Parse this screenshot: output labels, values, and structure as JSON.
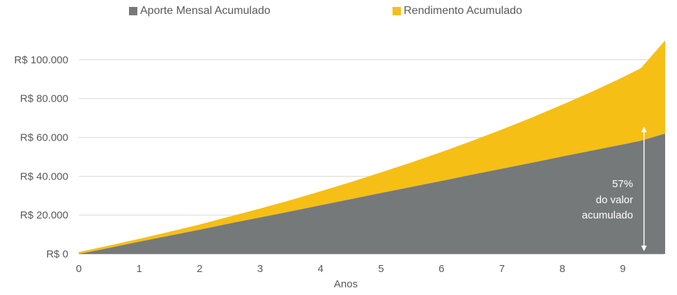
{
  "chart_data": {
    "type": "area",
    "stacked": true,
    "xlabel": "Anos",
    "ylabel": "",
    "xlim": [
      0,
      9.7
    ],
    "ylim": [
      0,
      110000
    ],
    "x_ticks": [
      0,
      1,
      2,
      3,
      4,
      5,
      6,
      7,
      8,
      9
    ],
    "y_ticks": [
      0,
      20000,
      40000,
      60000,
      80000,
      100000
    ],
    "y_tick_labels": [
      "R$ 0",
      "R$ 20.000",
      "R$ 40.000",
      "R$ 60.000",
      "R$ 80.000",
      "R$ 100.000"
    ],
    "grid": "horizontal",
    "legend_position": "top",
    "x": [
      0,
      0.5,
      1,
      1.5,
      2,
      2.5,
      3,
      3.5,
      4,
      4.5,
      5,
      5.5,
      6,
      6.5,
      7,
      7.5,
      8,
      8.5,
      9,
      9.3,
      9.7
    ],
    "series": [
      {
        "name": "Aporte Mensal Acumulado",
        "color": "#76797a",
        "values": [
          0,
          3100,
          6300,
          9400,
          12500,
          15700,
          18800,
          21900,
          25100,
          28200,
          31400,
          34500,
          37600,
          40800,
          43900,
          47000,
          50200,
          53300,
          56400,
          58300,
          62000
        ]
      },
      {
        "name": "Rendimento Acumulado",
        "color": "#f6bf15",
        "values": [
          1000,
          1200,
          1500,
          2000,
          2700,
          3600,
          4600,
          5800,
          7200,
          8800,
          10600,
          12600,
          14900,
          17400,
          20200,
          23300,
          26700,
          30400,
          34600,
          37400,
          48000
        ]
      }
    ],
    "annotation": {
      "lines": [
        "57%",
        "do valor",
        "acumulado"
      ],
      "x": 9.35
    }
  }
}
